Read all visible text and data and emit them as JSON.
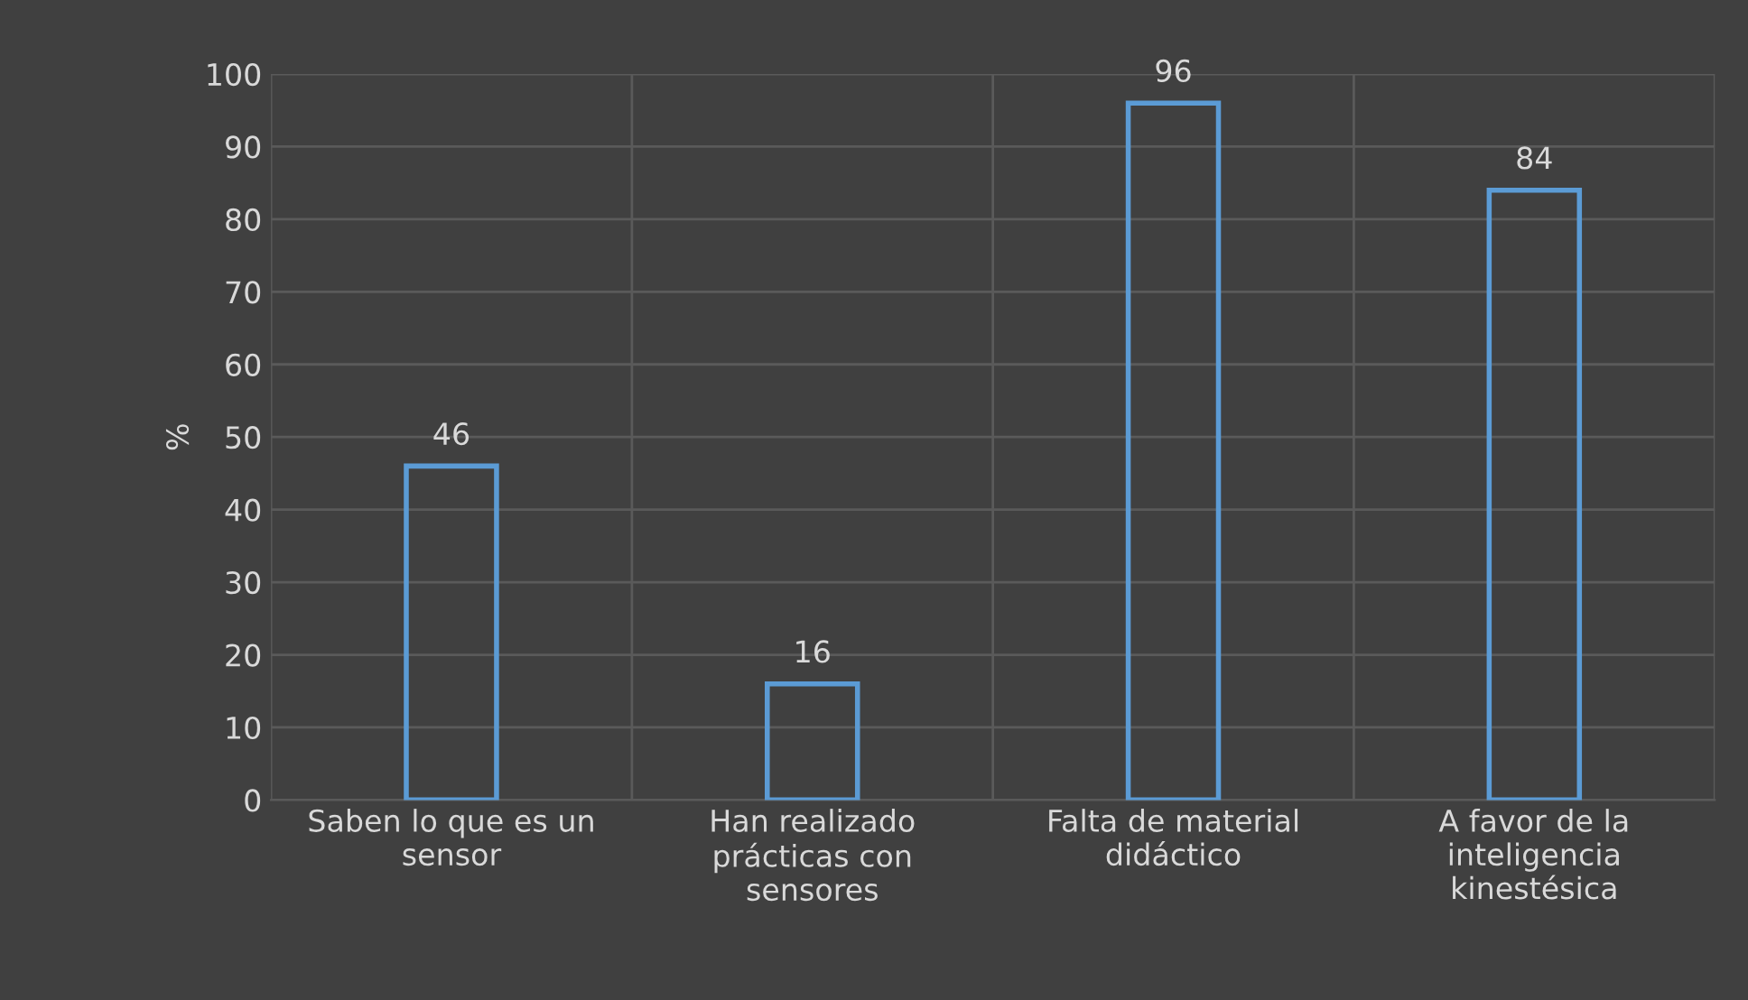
{
  "chart_data": {
    "type": "bar",
    "ylabel": "%",
    "categories": [
      "Saben lo que es un sensor",
      "Han realizado prácticas con sensores",
      "Falta de material didáctico",
      "A favor de la inteligencia kinestésica"
    ],
    "series": [
      {
        "color": "#5b9bd5",
        "values": [
          46,
          16,
          96,
          84
        ]
      }
    ],
    "ylim": [
      0,
      100
    ],
    "yticks": [
      0,
      10,
      20,
      30,
      40,
      50,
      60,
      70,
      80,
      90,
      100
    ],
    "grid": true,
    "data_labels": true
  }
}
